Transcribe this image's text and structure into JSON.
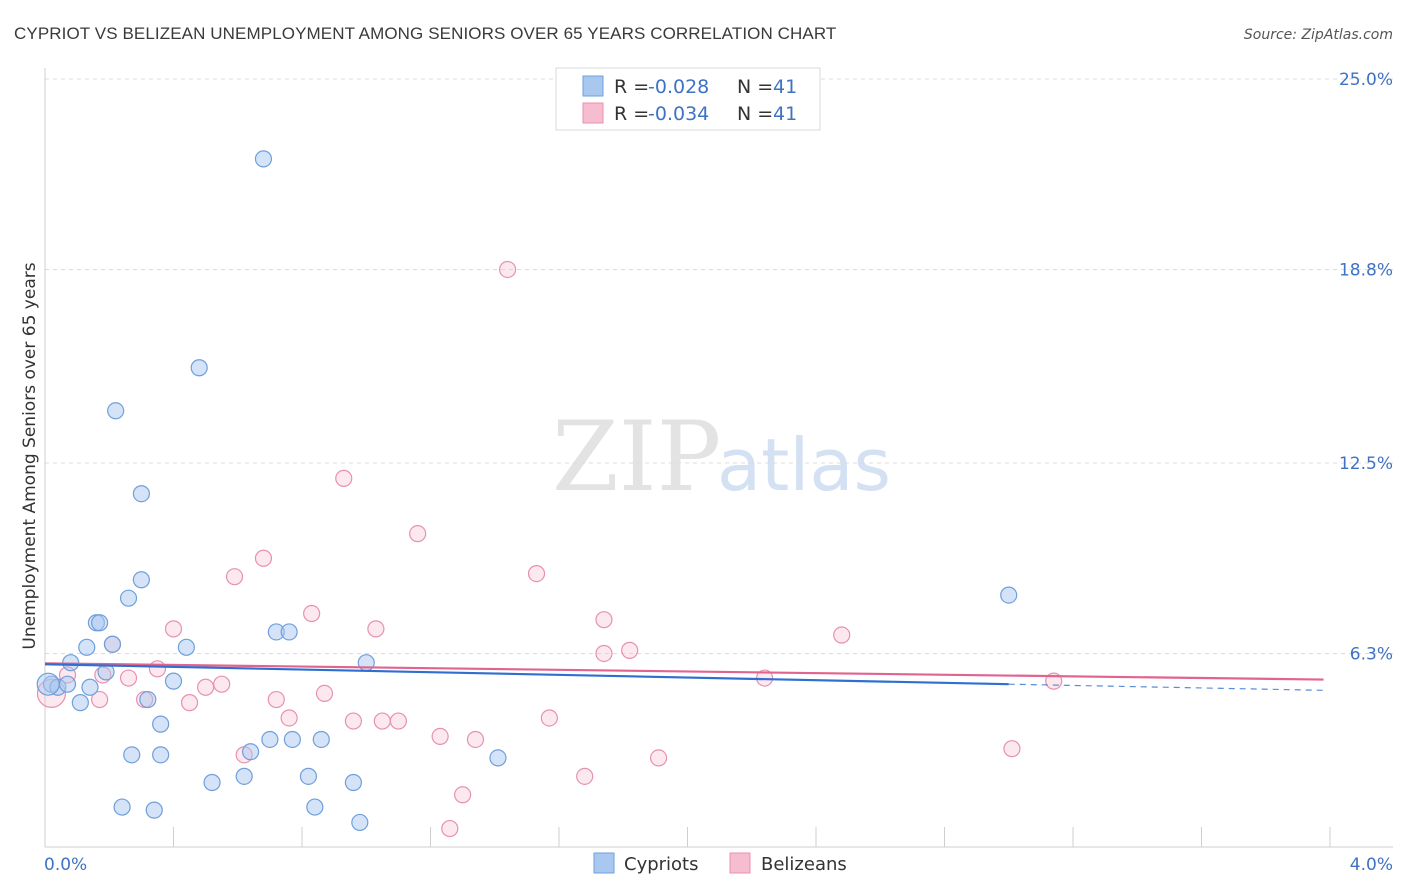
{
  "title": "CYPRIOT VS BELIZEAN UNEMPLOYMENT AMONG SENIORS OVER 65 YEARS CORRELATION CHART",
  "source": "Source: ZipAtlas.com",
  "watermark": {
    "zip": "ZIP",
    "atlas": "atlas"
  },
  "legend": {
    "rows": [
      {
        "r_label": "R = ",
        "r_value": "-0.028",
        "n_label": "N = ",
        "n_value": "41"
      },
      {
        "r_label": "R = ",
        "r_value": "-0.034",
        "n_label": "N = ",
        "n_value": "41"
      }
    ]
  },
  "bottom_legend": [
    "Cypriots",
    "Belizeans"
  ],
  "colors": {
    "blue_fill": "#a9c8f0",
    "blue_stroke": "#6f9fdc",
    "blue_line": "#2f6fd0",
    "pink_fill": "#f6bdd0",
    "pink_stroke": "#e891ae",
    "pink_line": "#e0648f",
    "accent_text": "#3f72c4"
  },
  "chart_data": {
    "type": "scatter",
    "title": "CYPRIOT VS BELIZEAN UNEMPLOYMENT AMONG SENIORS OVER 65 YEARS CORRELATION CHART",
    "xlabel": "",
    "ylabel": "Unemployment Among Seniors over 65 years",
    "xlim": [
      0,
      4.0
    ],
    "ylim": [
      0,
      25.0
    ],
    "x_tick_labels": [
      "0.0%",
      "4.0%"
    ],
    "y_tick_values": [
      6.3,
      12.5,
      18.8,
      25.0
    ],
    "y_tick_labels": [
      "6.3%",
      "12.5%",
      "18.8%",
      "25.0%"
    ],
    "series": [
      {
        "name": "Cypriots",
        "r": -0.028,
        "n": 41,
        "trend": {
          "x0": 0.0,
          "y0": 5.95,
          "x1": 3.0,
          "y1": 5.3,
          "dash_x1": 3.98,
          "dash_y1": 5.1
        },
        "points": [
          [
            0.68,
            22.4
          ],
          [
            0.48,
            15.6
          ],
          [
            0.22,
            14.2
          ],
          [
            0.3,
            11.5
          ],
          [
            0.3,
            8.7
          ],
          [
            0.26,
            8.1
          ],
          [
            3.0,
            8.2
          ],
          [
            0.16,
            7.3
          ],
          [
            0.17,
            7.3
          ],
          [
            0.72,
            7.0
          ],
          [
            0.76,
            7.0
          ],
          [
            0.21,
            6.6
          ],
          [
            0.13,
            6.5
          ],
          [
            0.44,
            6.5
          ],
          [
            0.08,
            6.0
          ],
          [
            1.0,
            6.0
          ],
          [
            0.19,
            5.7
          ],
          [
            0.02,
            5.3
          ],
          [
            0.04,
            5.2
          ],
          [
            0.07,
            5.3
          ],
          [
            0.14,
            5.2
          ],
          [
            0.4,
            5.4
          ],
          [
            0.32,
            4.8
          ],
          [
            0.11,
            4.7
          ],
          [
            0.36,
            4.0
          ],
          [
            0.77,
            3.5
          ],
          [
            0.7,
            3.5
          ],
          [
            0.86,
            3.5
          ],
          [
            0.27,
            3.0
          ],
          [
            0.36,
            3.0
          ],
          [
            0.64,
            3.1
          ],
          [
            1.41,
            2.9
          ],
          [
            0.82,
            2.3
          ],
          [
            0.62,
            2.3
          ],
          [
            0.52,
            2.1
          ],
          [
            0.96,
            2.1
          ],
          [
            0.84,
            1.3
          ],
          [
            0.24,
            1.3
          ],
          [
            0.34,
            1.2
          ],
          [
            0.98,
            0.8
          ],
          [
            0.01,
            5.3
          ]
        ]
      },
      {
        "name": "Belizeans",
        "r": -0.034,
        "n": 41,
        "trend": {
          "x0": 0.0,
          "y0": 5.98,
          "x1": 3.98,
          "y1": 5.45
        },
        "points": [
          [
            1.44,
            18.8
          ],
          [
            0.93,
            12.0
          ],
          [
            1.16,
            10.2
          ],
          [
            0.68,
            9.4
          ],
          [
            1.53,
            8.9
          ],
          [
            0.59,
            8.8
          ],
          [
            0.83,
            7.6
          ],
          [
            1.74,
            7.4
          ],
          [
            0.4,
            7.1
          ],
          [
            1.03,
            7.1
          ],
          [
            0.21,
            6.6
          ],
          [
            2.48,
            6.9
          ],
          [
            1.82,
            6.4
          ],
          [
            1.74,
            6.3
          ],
          [
            0.35,
            5.8
          ],
          [
            0.07,
            5.6
          ],
          [
            0.26,
            5.5
          ],
          [
            0.18,
            5.6
          ],
          [
            2.24,
            5.5
          ],
          [
            3.14,
            5.4
          ],
          [
            0.55,
            5.3
          ],
          [
            0.5,
            5.2
          ],
          [
            0.87,
            5.0
          ],
          [
            0.72,
            4.8
          ],
          [
            0.31,
            4.8
          ],
          [
            0.45,
            4.7
          ],
          [
            0.17,
            4.8
          ],
          [
            0.76,
            4.2
          ],
          [
            0.96,
            4.1
          ],
          [
            1.05,
            4.1
          ],
          [
            1.1,
            4.1
          ],
          [
            1.57,
            4.2
          ],
          [
            1.23,
            3.6
          ],
          [
            1.34,
            3.5
          ],
          [
            3.01,
            3.2
          ],
          [
            0.62,
            3.0
          ],
          [
            1.91,
            2.9
          ],
          [
            1.68,
            2.3
          ],
          [
            1.3,
            1.7
          ],
          [
            1.26,
            0.6
          ],
          [
            0.02,
            5.0
          ]
        ]
      }
    ]
  }
}
